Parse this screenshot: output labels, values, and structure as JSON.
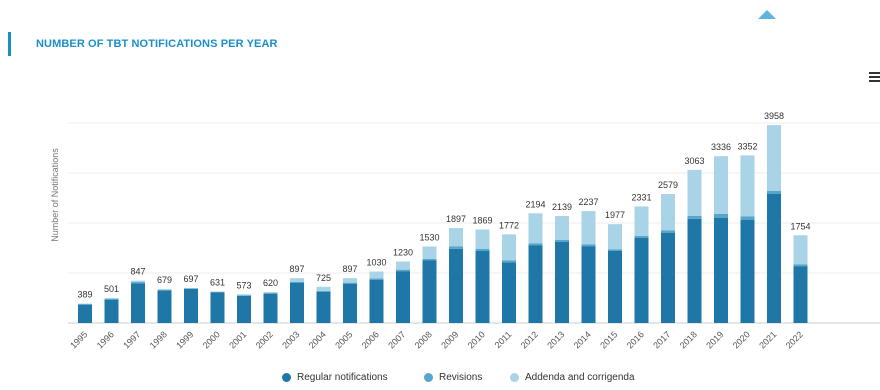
{
  "header": {
    "title": "NUMBER OF TBT NOTIFICATIONS PER YEAR"
  },
  "icons": {
    "collapse": "caret-up-icon",
    "menu": "hamburger-menu-icon"
  },
  "colors": {
    "accent": "#1a8fc7",
    "regular": "#1f77a8",
    "revisions": "#56a6cc",
    "addenda": "#a9d3e6"
  },
  "chart_data": {
    "type": "bar",
    "stacked": true,
    "title": "",
    "xlabel": "",
    "ylabel": "Number of Notifications",
    "ylim": [
      0,
      4000
    ],
    "grid": true,
    "legend_position": "bottom",
    "categories": [
      "1995",
      "1996",
      "1997",
      "1998",
      "1999",
      "2000",
      "2001",
      "2002",
      "2003",
      "2004",
      "2005",
      "2006",
      "2007",
      "2008",
      "2009",
      "2010",
      "2011",
      "2012",
      "2013",
      "2014",
      "2015",
      "2016",
      "2017",
      "2018",
      "2019",
      "2020",
      "2021",
      "2022"
    ],
    "totals": [
      389,
      501,
      847,
      679,
      697,
      631,
      573,
      620,
      897,
      725,
      897,
      1030,
      1230,
      1530,
      1897,
      1869,
      1772,
      2194,
      2139,
      2237,
      1977,
      2331,
      2579,
      3063,
      3336,
      3352,
      3958,
      1754
    ],
    "series": [
      {
        "name": "Regular notifications",
        "values": [
          365,
          460,
          794,
          648,
          680,
          615,
          540,
          584,
          800,
          625,
          787,
          867,
          1037,
          1250,
          1485,
          1440,
          1215,
          1550,
          1620,
          1530,
          1440,
          1700,
          1800,
          2085,
          2100,
          2060,
          2580,
          1130
        ]
      },
      {
        "name": "Revisions",
        "values": [
          15,
          20,
          25,
          16,
          10,
          10,
          15,
          18,
          20,
          18,
          20,
          25,
          30,
          35,
          45,
          40,
          40,
          45,
          40,
          45,
          35,
          45,
          50,
          60,
          80,
          70,
          60,
          40
        ]
      },
      {
        "name": "Addenda and corrigenda",
        "values": [
          9,
          21,
          28,
          15,
          7,
          6,
          18,
          18,
          77,
          82,
          90,
          138,
          163,
          245,
          367,
          389,
          517,
          599,
          479,
          662,
          502,
          586,
          729,
          918,
          1156,
          1222,
          1318,
          584
        ]
      }
    ]
  }
}
